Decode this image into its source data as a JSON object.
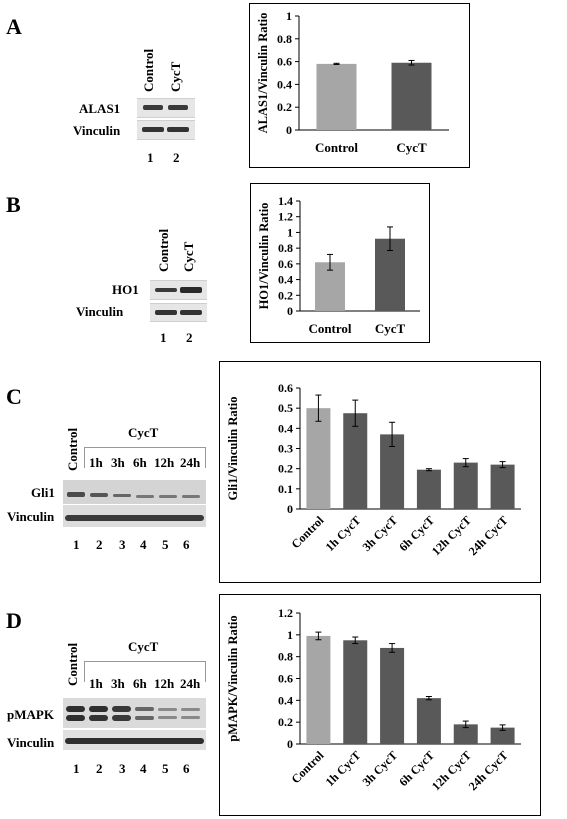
{
  "panels": [
    {
      "letter": "A",
      "blot": {
        "column_labels": [
          "Control",
          "CycT"
        ],
        "row_labels": [
          "ALAS1",
          "Vinculin"
        ],
        "lane_numbers": [
          "1",
          "2"
        ]
      },
      "chart_data": {
        "type": "bar",
        "categories": [
          "Control",
          "CycT"
        ],
        "values": [
          0.58,
          0.59
        ],
        "errors": [
          0.005,
          0.02
        ],
        "ylabel": "ALAS1/Vinculin Ratio",
        "ylim": [
          0,
          1
        ],
        "yticks": [
          "0",
          "0.2",
          "0.4",
          "0.6",
          "0.8",
          "1"
        ],
        "colors": [
          "#a6a6a6",
          "#595959"
        ]
      }
    },
    {
      "letter": "B",
      "blot": {
        "column_labels": [
          "Control",
          "CycT"
        ],
        "row_labels": [
          "HO1",
          "Vinculin"
        ],
        "lane_numbers": [
          "1",
          "2"
        ]
      },
      "chart_data": {
        "type": "bar",
        "categories": [
          "Control",
          "CycT"
        ],
        "values": [
          0.62,
          0.92
        ],
        "errors": [
          0.1,
          0.15
        ],
        "ylabel": "HO1/Vinculin Ratio",
        "ylim": [
          0,
          1.4
        ],
        "yticks": [
          "0",
          "0.2",
          "0.4",
          "0.6",
          "0.8",
          "1",
          "1.2",
          "1.4"
        ],
        "colors": [
          "#a6a6a6",
          "#595959"
        ]
      }
    },
    {
      "letter": "C",
      "blot": {
        "control_label": "Control",
        "group_label": "CycT",
        "time_labels": [
          "1h",
          "3h",
          "6h",
          "12h",
          "24h"
        ],
        "row_labels": [
          "Gli1",
          "Vinculin"
        ],
        "lane_numbers": [
          "1",
          "2",
          "3",
          "4",
          "5",
          "6"
        ]
      },
      "chart_data": {
        "type": "bar",
        "categories": [
          "Control",
          "1h CycT",
          "3h CycT",
          "6h CycT",
          "12h CycT",
          "24h CycT"
        ],
        "values": [
          0.5,
          0.475,
          0.37,
          0.195,
          0.23,
          0.22
        ],
        "errors": [
          0.065,
          0.065,
          0.06,
          0.005,
          0.02,
          0.015
        ],
        "ylabel": "Gli1/Vinculin Ratio",
        "ylim": [
          0,
          0.6
        ],
        "yticks": [
          "0",
          "0.1",
          "0.2",
          "0.3",
          "0.4",
          "0.5",
          "0.6"
        ],
        "colors": [
          "#a6a6a6",
          "#595959",
          "#595959",
          "#595959",
          "#595959",
          "#595959"
        ]
      }
    },
    {
      "letter": "D",
      "blot": {
        "control_label": "Control",
        "group_label": "CycT",
        "time_labels": [
          "1h",
          "3h",
          "6h",
          "12h",
          "24h"
        ],
        "row_labels": [
          "pMAPK",
          "Vinculin"
        ],
        "lane_numbers": [
          "1",
          "2",
          "3",
          "4",
          "5",
          "6"
        ]
      },
      "chart_data": {
        "type": "bar",
        "categories": [
          "Control",
          "1h CycT",
          "3h CycT",
          "6h CycT",
          "12h CycT",
          "24h CycT"
        ],
        "values": [
          0.99,
          0.95,
          0.88,
          0.42,
          0.18,
          0.15
        ],
        "errors": [
          0.035,
          0.03,
          0.04,
          0.015,
          0.03,
          0.025
        ],
        "ylabel": "pMAPK/Vinculin Ratio",
        "ylim": [
          0,
          1.2
        ],
        "yticks": [
          "0",
          "0.2",
          "0.4",
          "0.6",
          "0.8",
          "1",
          "1.2"
        ],
        "colors": [
          "#a6a6a6",
          "#595959",
          "#595959",
          "#595959",
          "#595959",
          "#595959"
        ]
      }
    }
  ]
}
